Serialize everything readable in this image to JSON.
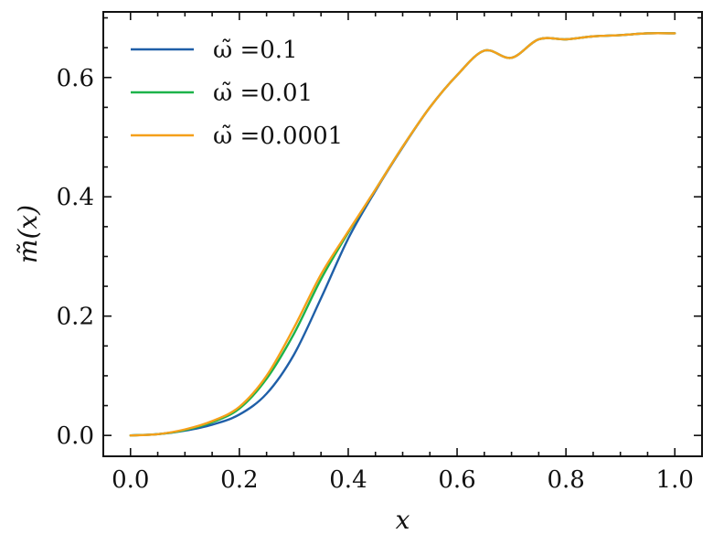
{
  "chart_data": {
    "type": "line",
    "title": "",
    "xlabel": "x",
    "ylabel": "m̃(x)",
    "xlim": [
      -0.05,
      1.05
    ],
    "ylim": [
      -0.035,
      0.71
    ],
    "xticks": [
      0.0,
      0.2,
      0.4,
      0.6,
      0.8,
      1.0
    ],
    "xtick_labels": [
      "0.0",
      "0.2",
      "0.4",
      "0.6",
      "0.8",
      "1.0"
    ],
    "yticks": [
      0.0,
      0.2,
      0.4,
      0.6
    ],
    "ytick_labels": [
      "0.0",
      "0.2",
      "0.4",
      "0.6"
    ],
    "grid": false,
    "legend_position": "top-left",
    "series": [
      {
        "name": "ω̃ =0.1",
        "color": "#1f5fa8",
        "x": [
          0.0,
          0.05,
          0.1,
          0.15,
          0.2,
          0.25,
          0.3,
          0.35,
          0.4,
          0.45,
          0.5,
          0.55,
          0.6,
          0.65,
          0.7,
          0.75,
          0.8,
          0.85,
          0.9,
          0.95,
          1.0
        ],
        "y": [
          0.0,
          0.002,
          0.008,
          0.018,
          0.035,
          0.07,
          0.135,
          0.23,
          0.33,
          0.41,
          0.483,
          0.55,
          0.604,
          0.645,
          0.633,
          0.664,
          0.664,
          0.669,
          0.671,
          0.674,
          0.674
        ]
      },
      {
        "name": "ω̃ =0.01",
        "color": "#1db34a",
        "x": [
          0.0,
          0.05,
          0.1,
          0.15,
          0.2,
          0.25,
          0.3,
          0.35,
          0.4,
          0.45,
          0.5,
          0.55,
          0.6,
          0.65,
          0.7,
          0.75,
          0.8,
          0.85,
          0.9,
          0.95,
          1.0
        ],
        "y": [
          0.0,
          0.002,
          0.009,
          0.022,
          0.045,
          0.095,
          0.17,
          0.262,
          0.34,
          0.412,
          0.484,
          0.55,
          0.604,
          0.645,
          0.633,
          0.664,
          0.664,
          0.669,
          0.671,
          0.674,
          0.674
        ]
      },
      {
        "name": "ω̃ =0.0001",
        "color": "#f5a01a",
        "x": [
          0.0,
          0.05,
          0.1,
          0.15,
          0.2,
          0.25,
          0.3,
          0.35,
          0.4,
          0.45,
          0.5,
          0.55,
          0.6,
          0.65,
          0.7,
          0.75,
          0.8,
          0.85,
          0.9,
          0.95,
          1.0
        ],
        "y": [
          0.0,
          0.002,
          0.01,
          0.024,
          0.048,
          0.1,
          0.18,
          0.27,
          0.342,
          0.412,
          0.484,
          0.55,
          0.604,
          0.645,
          0.633,
          0.664,
          0.664,
          0.669,
          0.671,
          0.674,
          0.674
        ]
      }
    ]
  }
}
